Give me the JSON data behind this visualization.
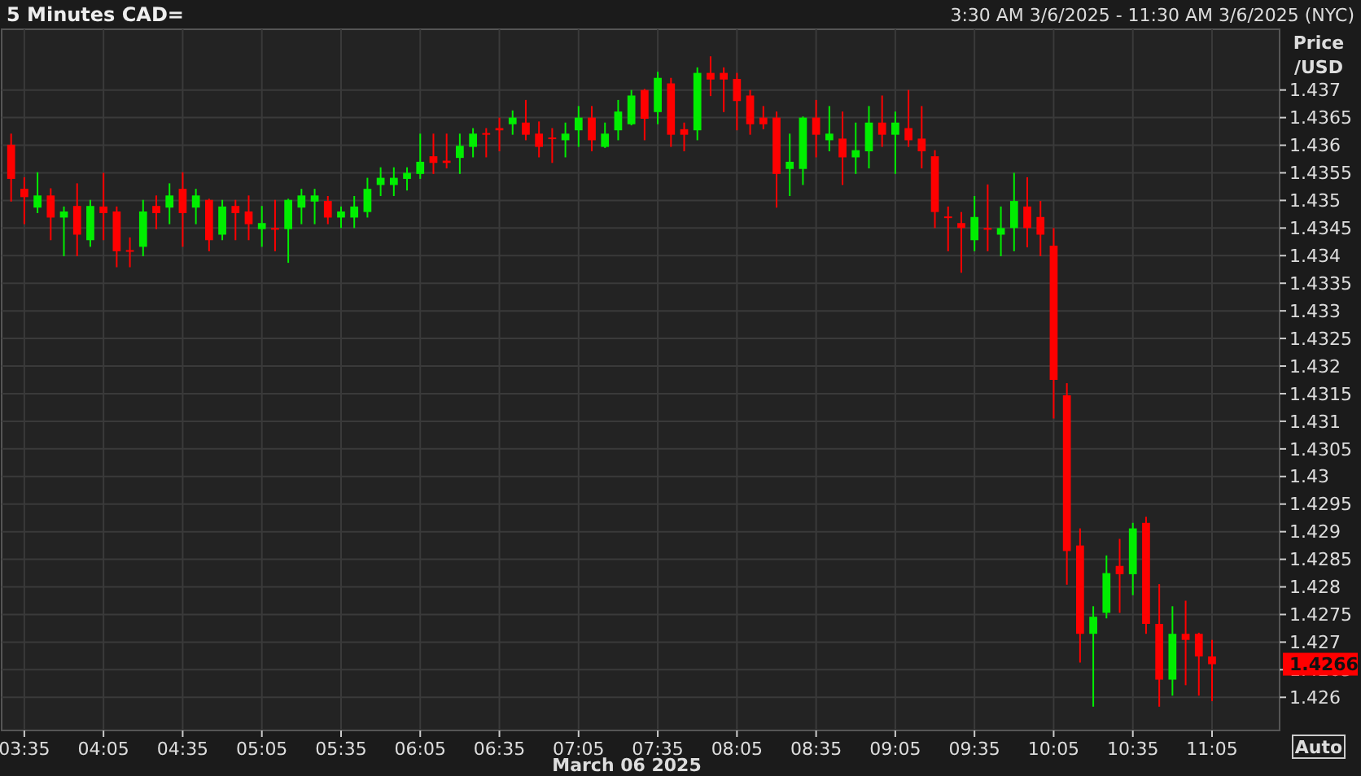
{
  "chart_data": {
    "type": "candlestick",
    "title": "5 Minutes CAD=",
    "subtitle": "3:30 AM 3/6/2025 - 11:30 AM 3/6/2025 (NYC)",
    "ylabel": "Price /USD",
    "annotations": [
      "March 06 2025",
      "Auto",
      "1.4266"
    ],
    "x": [
      3.5,
      3.5833,
      3.6667,
      3.75,
      3.8333,
      3.9167,
      4,
      4.0833,
      4.1667,
      4.25,
      4.3333,
      4.4167,
      4.5,
      4.5833,
      4.6667,
      4.75,
      4.8333,
      4.9167,
      5,
      5.0833,
      5.1667,
      5.25,
      5.3333,
      5.4167,
      5.5,
      5.5833,
      5.6667,
      5.75,
      5.8333,
      5.9167,
      6,
      6.0833,
      6.1667,
      6.25,
      6.3333,
      6.4167,
      6.5,
      6.5833,
      6.6667,
      6.75,
      6.8333,
      6.9167,
      7,
      7.0833,
      7.1667,
      7.25,
      7.3333,
      7.4167,
      7.5,
      7.5833,
      7.6667,
      7.75,
      7.8333,
      7.9167,
      8,
      8.0833,
      8.1667,
      8.25,
      8.3333,
      8.4167,
      8.5,
      8.5833,
      8.6667,
      8.75,
      8.8333,
      8.9167,
      9,
      9.0833,
      9.1667,
      9.25,
      9.3333,
      9.4167,
      9.5,
      9.5833,
      9.6667,
      9.75,
      9.8333,
      9.9167,
      10,
      10.0833,
      10.1667,
      10.25,
      10.3333,
      10.4167,
      10.5,
      10.5833,
      10.6667,
      10.75,
      10.8333,
      10.9167,
      11,
      11.0833
    ],
    "ohlc": [
      [
        1.43601,
        1.43621,
        1.43498,
        1.43539
      ],
      [
        1.43521,
        1.43542,
        1.43457,
        1.43506
      ],
      [
        1.43487,
        1.43551,
        1.43477,
        1.43509
      ],
      [
        1.43509,
        1.43522,
        1.43428,
        1.43469
      ],
      [
        1.43469,
        1.43489,
        1.43399,
        1.4348
      ],
      [
        1.4349,
        1.43531,
        1.43399,
        1.43438
      ],
      [
        1.43428,
        1.43501,
        1.43416,
        1.4349
      ],
      [
        1.43489,
        1.4355,
        1.43428,
        1.43477
      ],
      [
        1.4348,
        1.43489,
        1.43379,
        1.43408
      ],
      [
        1.4341,
        1.43433,
        1.43379,
        1.43408
      ],
      [
        1.43416,
        1.43501,
        1.43399,
        1.4348
      ],
      [
        1.4349,
        1.43509,
        1.43448,
        1.43477
      ],
      [
        1.43487,
        1.43531,
        1.43457,
        1.43509
      ],
      [
        1.43521,
        1.43551,
        1.43416,
        1.43477
      ],
      [
        1.43487,
        1.43521,
        1.43457,
        1.43509
      ],
      [
        1.43501,
        1.43503,
        1.43408,
        1.43428
      ],
      [
        1.43438,
        1.43501,
        1.43428,
        1.43489
      ],
      [
        1.4349,
        1.43501,
        1.43428,
        1.43477
      ],
      [
        1.4348,
        1.43509,
        1.43428,
        1.43457
      ],
      [
        1.43448,
        1.4349,
        1.43416,
        1.43459
      ],
      [
        1.4345,
        1.43501,
        1.43408,
        1.43448
      ],
      [
        1.43448,
        1.43503,
        1.43387,
        1.43501
      ],
      [
        1.43487,
        1.43521,
        1.43457,
        1.43509
      ],
      [
        1.43498,
        1.43521,
        1.43457,
        1.43509
      ],
      [
        1.43499,
        1.43508,
        1.43457,
        1.43469
      ],
      [
        1.43469,
        1.43489,
        1.4345,
        1.4348
      ],
      [
        1.43469,
        1.43508,
        1.4345,
        1.43489
      ],
      [
        1.43479,
        1.43541,
        1.43469,
        1.43521
      ],
      [
        1.43528,
        1.4356,
        1.43508,
        1.43541
      ],
      [
        1.43528,
        1.4356,
        1.43508,
        1.43541
      ],
      [
        1.43539,
        1.4356,
        1.43518,
        1.4355
      ],
      [
        1.43548,
        1.43621,
        1.43539,
        1.4357
      ],
      [
        1.4358,
        1.43621,
        1.43548,
        1.43568
      ],
      [
        1.43572,
        1.43621,
        1.43558,
        1.43568
      ],
      [
        1.43577,
        1.43621,
        1.43548,
        1.43599
      ],
      [
        1.43597,
        1.43631,
        1.43578,
        1.43621
      ],
      [
        1.43622,
        1.43631,
        1.43578,
        1.43619
      ],
      [
        1.43631,
        1.4365,
        1.43589,
        1.43627
      ],
      [
        1.43638,
        1.43663,
        1.43619,
        1.4365
      ],
      [
        1.43641,
        1.43682,
        1.43609,
        1.43619
      ],
      [
        1.43621,
        1.43643,
        1.43578,
        1.43597
      ],
      [
        1.43614,
        1.43631,
        1.43568,
        1.43611
      ],
      [
        1.43609,
        1.43641,
        1.43578,
        1.43621
      ],
      [
        1.43627,
        1.43671,
        1.43597,
        1.4365
      ],
      [
        1.4365,
        1.43671,
        1.43589,
        1.43609
      ],
      [
        1.43597,
        1.43641,
        1.43595,
        1.43621
      ],
      [
        1.43627,
        1.43682,
        1.43609,
        1.43661
      ],
      [
        1.43638,
        1.437,
        1.43636,
        1.4369
      ],
      [
        1.437,
        1.43702,
        1.43609,
        1.43648
      ],
      [
        1.4366,
        1.43733,
        1.43638,
        1.43722
      ],
      [
        1.43712,
        1.43722,
        1.43597,
        1.43619
      ],
      [
        1.43629,
        1.43641,
        1.43589,
        1.43619
      ],
      [
        1.43627,
        1.43741,
        1.43609,
        1.43731
      ],
      [
        1.43731,
        1.43761,
        1.43689,
        1.43719
      ],
      [
        1.43731,
        1.43741,
        1.4366,
        1.43719
      ],
      [
        1.4372,
        1.43731,
        1.43627,
        1.4368
      ],
      [
        1.4369,
        1.437,
        1.43619,
        1.43638
      ],
      [
        1.4365,
        1.43671,
        1.43629,
        1.43638
      ],
      [
        1.4365,
        1.43661,
        1.43487,
        1.43548
      ],
      [
        1.43557,
        1.43621,
        1.43508,
        1.4357
      ],
      [
        1.43557,
        1.43652,
        1.43528,
        1.4365
      ],
      [
        1.4365,
        1.43682,
        1.43578,
        1.43619
      ],
      [
        1.43609,
        1.43671,
        1.43589,
        1.43621
      ],
      [
        1.43612,
        1.43661,
        1.43528,
        1.43578
      ],
      [
        1.43578,
        1.43641,
        1.43548,
        1.43591
      ],
      [
        1.43589,
        1.43671,
        1.43558,
        1.43641
      ],
      [
        1.43641,
        1.4369,
        1.43597,
        1.43619
      ],
      [
        1.43619,
        1.43661,
        1.43548,
        1.43641
      ],
      [
        1.43631,
        1.437,
        1.43597,
        1.43609
      ],
      [
        1.43612,
        1.43671,
        1.43558,
        1.43589
      ],
      [
        1.4358,
        1.43591,
        1.4345,
        1.43479
      ],
      [
        1.43471,
        1.43489,
        1.43408,
        1.43468
      ],
      [
        1.43459,
        1.43479,
        1.43369,
        1.4345
      ],
      [
        1.43428,
        1.43508,
        1.43408,
        1.4347
      ],
      [
        1.4345,
        1.43529,
        1.43408,
        1.43449
      ],
      [
        1.43438,
        1.43489,
        1.43399,
        1.4345
      ],
      [
        1.4345,
        1.4355,
        1.43408,
        1.43499
      ],
      [
        1.43489,
        1.43542,
        1.43415,
        1.4345
      ],
      [
        1.4347,
        1.43499,
        1.43399,
        1.43438
      ],
      [
        1.43418,
        1.4345,
        1.43105,
        1.43175
      ],
      [
        1.43147,
        1.43169,
        1.42804,
        1.42865
      ],
      [
        1.42875,
        1.42906,
        1.42663,
        1.42715
      ],
      [
        1.42715,
        1.42765,
        1.42583,
        1.42746
      ],
      [
        1.42753,
        1.42857,
        1.42743,
        1.42825
      ],
      [
        1.42838,
        1.42887,
        1.42753,
        1.42823
      ],
      [
        1.42823,
        1.42916,
        1.42785,
        1.42906
      ],
      [
        1.42916,
        1.42927,
        1.42715,
        1.42733
      ],
      [
        1.42733,
        1.42805,
        1.42583,
        1.42632
      ],
      [
        1.42632,
        1.42765,
        1.42603,
        1.42715
      ],
      [
        1.42715,
        1.42775,
        1.42622,
        1.42704
      ],
      [
        1.42715,
        1.42717,
        1.42603,
        1.42674
      ],
      [
        1.42674,
        1.42704,
        1.42593,
        1.4266
      ]
    ],
    "colors": [
      "#ff0000",
      "#ff0000",
      "#00ee00",
      "#ff0000",
      "#00ee00",
      "#ff0000",
      "#00ee00",
      "#ff0000",
      "#ff0000",
      "#ff0000",
      "#00ee00",
      "#ff0000",
      "#00ee00",
      "#ff0000",
      "#00ee00",
      "#ff0000",
      "#00ee00",
      "#ff0000",
      "#ff0000",
      "#00ee00",
      "#ff0000",
      "#00ee00",
      "#00ee00",
      "#00ee00",
      "#ff0000",
      "#00ee00",
      "#00ee00",
      "#00ee00",
      "#00ee00",
      "#00ee00",
      "#00ee00",
      "#00ee00",
      "#ff0000",
      "#ff0000",
      "#00ee00",
      "#00ee00",
      "#ff0000",
      "#ff0000",
      "#00ee00",
      "#ff0000",
      "#ff0000",
      "#ff0000",
      "#00ee00",
      "#00ee00",
      "#ff0000",
      "#00ee00",
      "#00ee00",
      "#00ee00",
      "#ff0000",
      "#00ee00",
      "#ff0000",
      "#ff0000",
      "#00ee00",
      "#ff0000",
      "#ff0000",
      "#ff0000",
      "#ff0000",
      "#ff0000",
      "#ff0000",
      "#00ee00",
      "#00ee00",
      "#ff0000",
      "#00ee00",
      "#ff0000",
      "#00ee00",
      "#00ee00",
      "#ff0000",
      "#00ee00",
      "#ff0000",
      "#ff0000",
      "#ff0000",
      "#ff0000",
      "#ff0000",
      "#00ee00",
      "#ff0000",
      "#00ee00",
      "#00ee00",
      "#ff0000",
      "#ff0000",
      "#ff0000",
      "#ff0000",
      "#ff0000",
      "#00ee00",
      "#00ee00",
      "#ff0000",
      "#00ee00",
      "#ff0000",
      "#ff0000",
      "#00ee00",
      "#ff0000",
      "#ff0000",
      "#ff0000"
    ],
    "xlim": [
      3.44,
      11.51
    ],
    "xticks": [
      {
        "value": 3.5833,
        "label": "03:35"
      },
      {
        "value": 4.0833,
        "label": "04:05"
      },
      {
        "value": 4.5833,
        "label": "04:35"
      },
      {
        "value": 5.0833,
        "label": "05:05"
      },
      {
        "value": 5.5833,
        "label": "05:35"
      },
      {
        "value": 6.0833,
        "label": "06:05"
      },
      {
        "value": 6.5833,
        "label": "06:35"
      },
      {
        "value": 7.0833,
        "label": "07:05"
      },
      {
        "value": 7.5833,
        "label": "07:35"
      },
      {
        "value": 8.0833,
        "label": "08:05"
      },
      {
        "value": 8.5833,
        "label": "08:35"
      },
      {
        "value": 9.0833,
        "label": "09:05"
      },
      {
        "value": 9.5833,
        "label": "09:35"
      },
      {
        "value": 10.0833,
        "label": "10:05"
      },
      {
        "value": 10.5833,
        "label": "10:35"
      },
      {
        "value": 11.0833,
        "label": "11:05"
      }
    ],
    "ylim": [
      1.4254,
      1.4381
    ],
    "yticks": [
      1.426,
      1.4265,
      1.427,
      1.4275,
      1.428,
      1.4285,
      1.429,
      1.4295,
      1.43,
      1.4305,
      1.431,
      1.4315,
      1.432,
      1.4325,
      1.433,
      1.4335,
      1.434,
      1.4345,
      1.435,
      1.4355,
      1.436,
      1.4365,
      1.437
    ],
    "grid": true
  }
}
